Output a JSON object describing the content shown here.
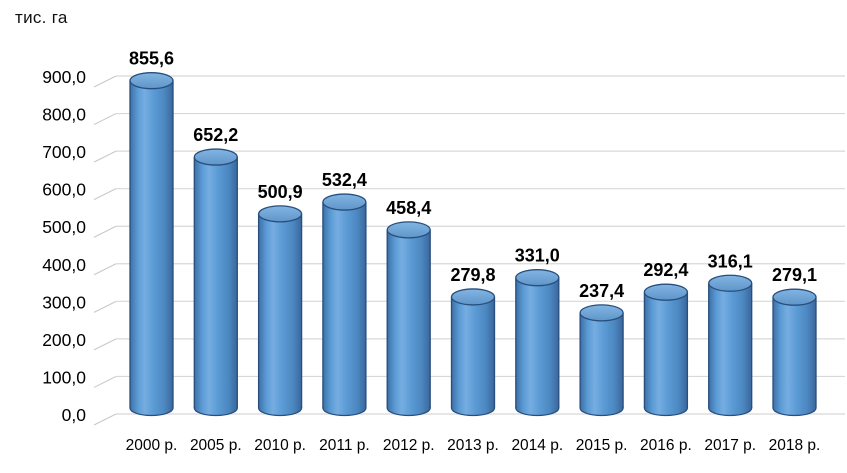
{
  "chart_data": {
    "type": "bar",
    "style": "3d-cylinder",
    "title": "",
    "y_axis_title": "тис. га",
    "xlabel": "",
    "ylabel": "тис. га",
    "categories": [
      "2000 р.",
      "2005 р.",
      "2010 р.",
      "2011 р.",
      "2012 р.",
      "2013 р.",
      "2014 р.",
      "2015 р.",
      "2016 р.",
      "2017 р.",
      "2018 р."
    ],
    "values": [
      855.6,
      652.2,
      500.9,
      532.4,
      458.4,
      279.8,
      331.0,
      237.4,
      292.4,
      316.1,
      279.1
    ],
    "value_labels": [
      "855,6",
      "652,2",
      "500,9",
      "532,4",
      "458,4",
      "279,8",
      "331,0",
      "237,4",
      "292,4",
      "316,1",
      "279,1"
    ],
    "ylim": [
      0,
      900
    ],
    "ytick_step": 100,
    "ytick_labels": [
      "0,0",
      "100,0",
      "200,0",
      "300,0",
      "400,0",
      "500,0",
      "600,0",
      "700,0",
      "800,0",
      "900,0"
    ],
    "grid": true,
    "legend_position": "none",
    "colors": {
      "bar_fill_mid": "#5b9bd5",
      "bar_fill_light": "#76ade1",
      "bar_fill_dark_left": "#3e6fa6",
      "bar_fill_dark_right": "#3a679c",
      "bar_stroke": "#274e7d",
      "top_fill_light": "#82b5e3",
      "top_fill_dark": "#6095c9",
      "gridline": "#d8d8d8",
      "tick_diagonal": "#c9c9c9",
      "text": "#000000"
    }
  }
}
